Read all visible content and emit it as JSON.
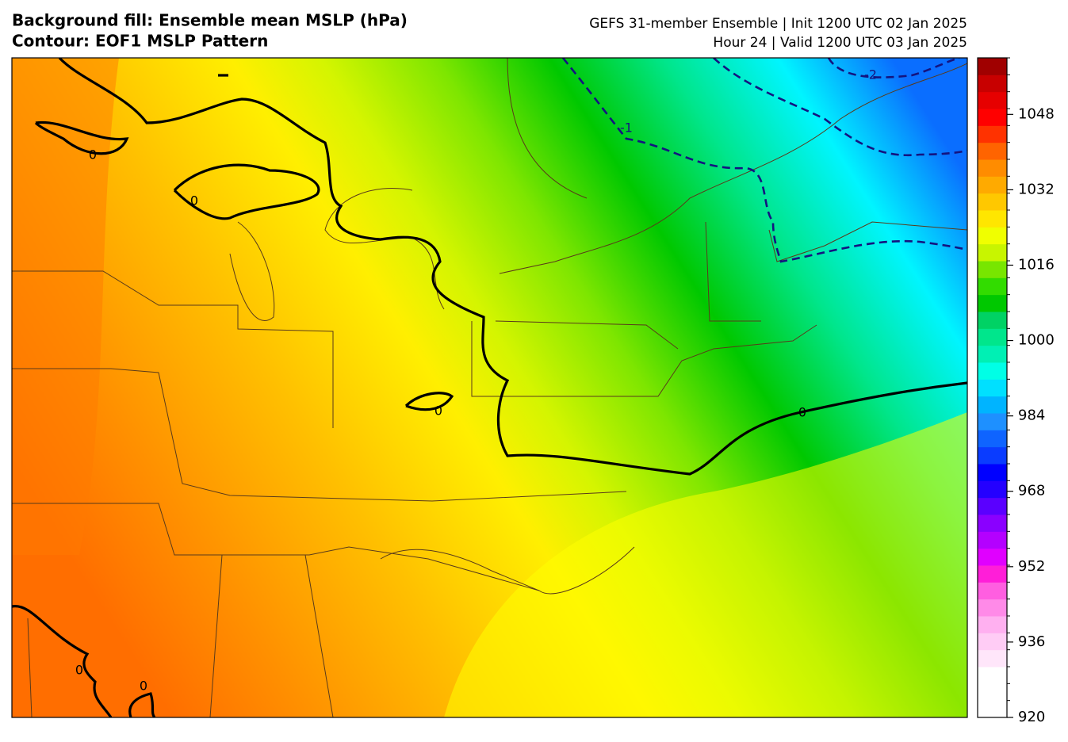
{
  "header": {
    "left": [
      "Background fill: Ensemble mean MSLP (hPa)",
      "Contour: EOF1 MSLP Pattern"
    ],
    "right": [
      "GEFS 31-member Ensemble | Init 1200 UTC 02 Jan 2025",
      "Hour 24 | Valid 1200 UTC 03 Jan 2025"
    ]
  },
  "contour_labels": [
    "0",
    "0",
    "0",
    "0",
    "0",
    "0",
    "-1",
    "-2"
  ],
  "colorbar": {
    "lim": [
      920,
      1060
    ],
    "ticks": [
      920,
      936,
      952,
      968,
      984,
      1000,
      1016,
      1032,
      1048
    ],
    "colors": [
      "#ffffff",
      "#ffffff",
      "#ffffff",
      "#ffe6fa",
      "#ffccf5",
      "#ffb0f0",
      "#ff8ae8",
      "#ff5ee0",
      "#ff1ed8",
      "#e000ff",
      "#b400ff",
      "#8a00ff",
      "#5a00ff",
      "#2400ff",
      "#0000ff",
      "#0a3cff",
      "#0f64ff",
      "#1e90ff",
      "#00b4ff",
      "#00e0ff",
      "#00ffe6",
      "#00f0b4",
      "#00e68c",
      "#00d264",
      "#00c800",
      "#32dc00",
      "#78e600",
      "#c8f500",
      "#f0ff00",
      "#ffe600",
      "#ffc800",
      "#ffaa00",
      "#ff8c00",
      "#ff6400",
      "#ff3200",
      "#ff0000",
      "#e60000",
      "#c80000",
      "#a00000"
    ]
  }
}
